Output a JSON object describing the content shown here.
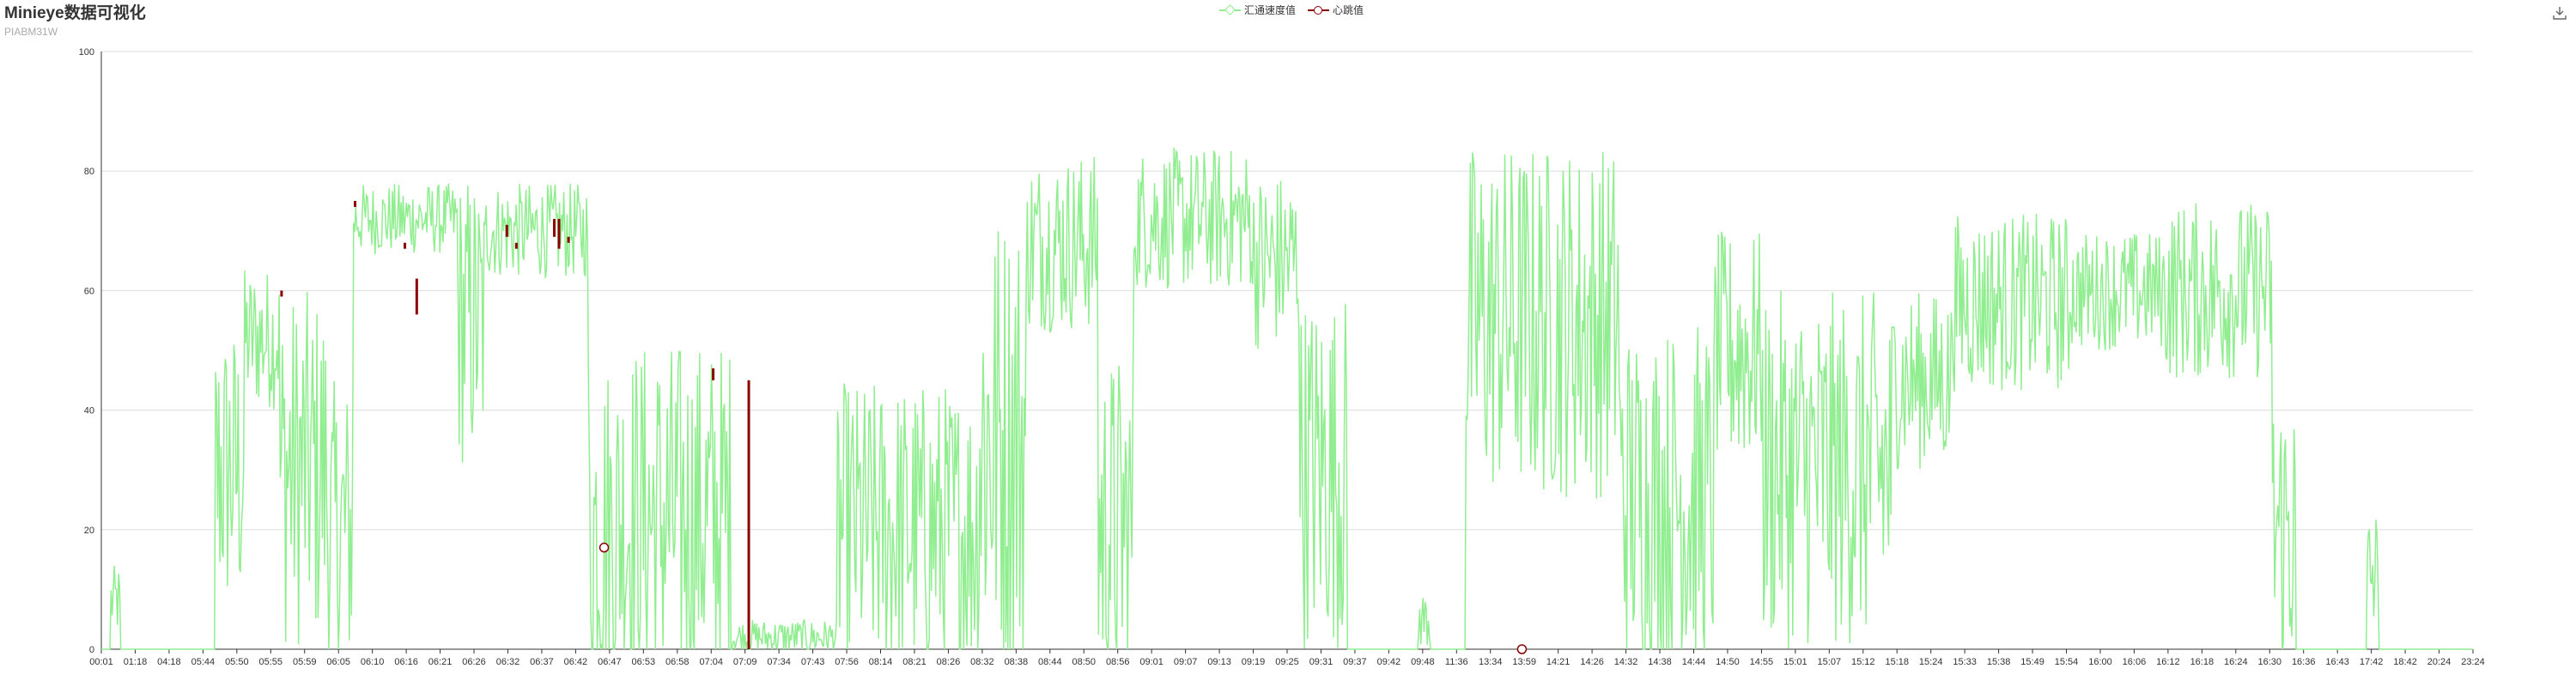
{
  "header": {
    "title": "Minieye数据可视化",
    "subtitle": "PIABM31W"
  },
  "toolbar": {
    "download_icon": "download-icon"
  },
  "colors": {
    "speed": "#90ee90",
    "heartbeat": "#8b0000",
    "grid": "#dddddd",
    "axis": "#333333"
  },
  "chart_data": {
    "type": "line",
    "title": "Minieye数据可视化",
    "subtitle": "PIABM31W",
    "legend": [
      "汇通速度值",
      "心跳值"
    ],
    "legend_position": "top-center",
    "grid": true,
    "ylim": [
      0,
      100
    ],
    "yticks": [
      0,
      20,
      40,
      60,
      80,
      100
    ],
    "xticks": [
      "00:01",
      "01:18",
      "04:18",
      "05:44",
      "05:50",
      "05:55",
      "05:59",
      "06:05",
      "06:10",
      "06:16",
      "06:21",
      "06:26",
      "06:32",
      "06:37",
      "06:42",
      "06:47",
      "06:53",
      "06:58",
      "07:04",
      "07:09",
      "07:34",
      "07:43",
      "07:56",
      "08:14",
      "08:21",
      "08:26",
      "08:32",
      "08:38",
      "08:44",
      "08:50",
      "08:56",
      "09:01",
      "09:07",
      "09:13",
      "09:19",
      "09:25",
      "09:31",
      "09:37",
      "09:42",
      "09:48",
      "11:36",
      "13:34",
      "13:59",
      "14:21",
      "14:26",
      "14:32",
      "14:38",
      "14:44",
      "14:50",
      "14:55",
      "15:01",
      "15:07",
      "15:12",
      "15:18",
      "15:24",
      "15:33",
      "15:38",
      "15:49",
      "15:54",
      "16:00",
      "16:06",
      "16:12",
      "16:18",
      "16:24",
      "16:30",
      "16:36",
      "16:43",
      "17:42",
      "18:42",
      "20:24",
      "23:24"
    ],
    "series": [
      {
        "name": "汇通速度值",
        "marker": "diamond",
        "segments": [
          {
            "from": 0.0,
            "to": 0.004,
            "level": 0,
            "amp": 0
          },
          {
            "from": 0.004,
            "to": 0.008,
            "level": 8,
            "amp": 6
          },
          {
            "from": 0.008,
            "to": 0.048,
            "level": 0,
            "amp": 0
          },
          {
            "from": 0.048,
            "to": 0.06,
            "level": 30,
            "amp": 25
          },
          {
            "from": 0.06,
            "to": 0.075,
            "level": 52,
            "amp": 12
          },
          {
            "from": 0.075,
            "to": 0.095,
            "level": 30,
            "amp": 30
          },
          {
            "from": 0.095,
            "to": 0.106,
            "level": 20,
            "amp": 25
          },
          {
            "from": 0.106,
            "to": 0.15,
            "level": 72,
            "amp": 6
          },
          {
            "from": 0.15,
            "to": 0.162,
            "level": 55,
            "amp": 25
          },
          {
            "from": 0.162,
            "to": 0.205,
            "level": 70,
            "amp": 8
          },
          {
            "from": 0.205,
            "to": 0.218,
            "level": 20,
            "amp": 30
          },
          {
            "from": 0.218,
            "to": 0.265,
            "level": 22,
            "amp": 30
          },
          {
            "from": 0.265,
            "to": 0.31,
            "level": 2,
            "amp": 3
          },
          {
            "from": 0.31,
            "to": 0.37,
            "level": 20,
            "amp": 25
          },
          {
            "from": 0.37,
            "to": 0.39,
            "level": 35,
            "amp": 40
          },
          {
            "from": 0.39,
            "to": 0.42,
            "level": 68,
            "amp": 15
          },
          {
            "from": 0.42,
            "to": 0.435,
            "level": 20,
            "amp": 30
          },
          {
            "from": 0.435,
            "to": 0.485,
            "level": 72,
            "amp": 12
          },
          {
            "from": 0.485,
            "to": 0.505,
            "level": 65,
            "amp": 15
          },
          {
            "from": 0.505,
            "to": 0.525,
            "level": 30,
            "amp": 30
          },
          {
            "from": 0.525,
            "to": 0.555,
            "level": 0,
            "amp": 0
          },
          {
            "from": 0.555,
            "to": 0.56,
            "level": 5,
            "amp": 5
          },
          {
            "from": 0.56,
            "to": 0.575,
            "level": 0,
            "amp": 0
          },
          {
            "from": 0.575,
            "to": 0.64,
            "level": 55,
            "amp": 30
          },
          {
            "from": 0.64,
            "to": 0.68,
            "level": 25,
            "amp": 30
          },
          {
            "from": 0.68,
            "to": 0.7,
            "level": 50,
            "amp": 20
          },
          {
            "from": 0.7,
            "to": 0.755,
            "level": 30,
            "amp": 30
          },
          {
            "from": 0.755,
            "to": 0.78,
            "level": 45,
            "amp": 15
          },
          {
            "from": 0.78,
            "to": 0.83,
            "level": 58,
            "amp": 15
          },
          {
            "from": 0.83,
            "to": 0.87,
            "level": 60,
            "amp": 10
          },
          {
            "from": 0.87,
            "to": 0.915,
            "level": 60,
            "amp": 15
          },
          {
            "from": 0.915,
            "to": 0.925,
            "level": 20,
            "amp": 25
          },
          {
            "from": 0.925,
            "to": 0.955,
            "level": 0,
            "amp": 0
          },
          {
            "from": 0.955,
            "to": 0.96,
            "level": 12,
            "amp": 12
          },
          {
            "from": 0.96,
            "to": 1.0,
            "level": 0,
            "amp": 0
          }
        ]
      },
      {
        "name": "心跳值",
        "marker": "circle",
        "bars": [
          {
            "x": 0.076,
            "low": 59,
            "high": 60
          },
          {
            "x": 0.107,
            "low": 74,
            "high": 75
          },
          {
            "x": 0.128,
            "low": 67,
            "high": 68
          },
          {
            "x": 0.133,
            "low": 56,
            "high": 62
          },
          {
            "x": 0.171,
            "low": 69,
            "high": 71
          },
          {
            "x": 0.175,
            "low": 67,
            "high": 68
          },
          {
            "x": 0.191,
            "low": 69,
            "high": 72
          },
          {
            "x": 0.193,
            "low": 67,
            "high": 72
          },
          {
            "x": 0.197,
            "low": 68,
            "high": 69
          },
          {
            "x": 0.258,
            "low": 45,
            "high": 47
          },
          {
            "x": 0.273,
            "low": 0,
            "high": 45
          }
        ],
        "points": [
          {
            "x": 0.212,
            "y": 17
          },
          {
            "x": 0.599,
            "y": 0
          }
        ]
      }
    ]
  }
}
